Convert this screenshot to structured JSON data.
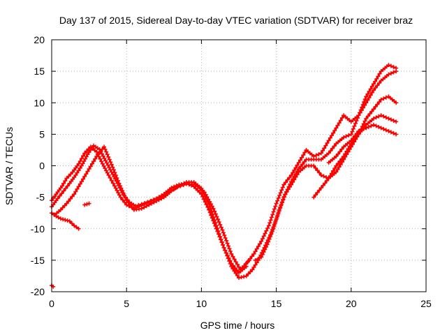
{
  "chart_data": {
    "type": "scatter",
    "title": "Day 137 of 2015, Sidereal Day-to-day VTEC variation (SDTVAR) for receiver braz",
    "xlabel": "GPS time / hours",
    "ylabel": "SDTVAR / TECUs",
    "xlim": [
      0,
      25
    ],
    "ylim": [
      -20,
      20
    ],
    "xticks": [
      0,
      5,
      10,
      15,
      20,
      25
    ],
    "yticks": [
      -20,
      -15,
      -10,
      -5,
      0,
      5,
      10,
      15,
      20
    ],
    "xtick_labels": [
      "0",
      "5",
      "10",
      "15",
      "20",
      "25"
    ],
    "ytick_labels": [
      "-20",
      "-15",
      "-10",
      "-5",
      "0",
      "5",
      "10",
      "15",
      "20"
    ],
    "grid": true,
    "marker": "plus",
    "color": "#ff0000",
    "series": [
      {
        "name": "arc-1",
        "x": [
          0.0,
          0.3,
          0.7,
          1.0,
          1.4,
          1.8,
          2.2,
          2.6,
          3.0,
          3.4,
          3.8,
          4.2,
          4.6,
          5.0,
          5.5,
          6.0,
          6.5,
          7.0,
          7.5,
          8.0,
          8.5,
          9.0,
          9.5,
          10.0,
          10.5,
          11.0,
          11.5,
          12.0,
          12.5,
          13.0
        ],
        "y": [
          -5.5,
          -4.5,
          -3.2,
          -2.0,
          -1.0,
          0.3,
          2.0,
          3.0,
          2.2,
          0.3,
          -1.5,
          -3.2,
          -5.0,
          -6.2,
          -6.8,
          -6.3,
          -5.8,
          -5.2,
          -4.5,
          -3.5,
          -3.0,
          -2.8,
          -3.3,
          -4.5,
          -7.0,
          -10.0,
          -13.0,
          -15.5,
          -17.0,
          -16.0
        ]
      },
      {
        "name": "arc-2",
        "x": [
          0.0,
          0.4,
          0.8,
          1.2,
          1.6,
          2.0,
          2.4,
          2.8,
          3.2,
          3.6,
          4.0,
          4.4,
          4.8,
          5.2,
          5.6,
          6.0,
          6.6,
          7.2,
          7.8,
          8.4,
          9.0,
          9.6,
          10.2,
          10.8,
          11.4,
          12.0,
          12.6,
          13.2
        ],
        "y": [
          -6.5,
          -5.2,
          -4.0,
          -2.8,
          -1.5,
          0.0,
          1.8,
          3.2,
          2.6,
          0.8,
          -1.0,
          -2.8,
          -4.6,
          -5.8,
          -6.4,
          -6.1,
          -5.6,
          -5.1,
          -4.2,
          -3.4,
          -2.9,
          -3.0,
          -4.2,
          -6.8,
          -10.2,
          -14.0,
          -16.5,
          -15.0
        ]
      },
      {
        "name": "arc-3",
        "x": [
          0.2,
          0.6,
          1.0,
          1.5,
          2.0,
          2.5,
          3.0,
          3.5,
          4.0,
          4.5,
          5.0,
          5.5,
          6.0,
          6.5,
          7.0,
          7.5,
          8.0,
          8.5,
          9.0,
          9.5,
          10.0,
          10.5,
          11.0,
          11.5,
          12.0,
          12.5,
          13.0,
          13.4
        ],
        "y": [
          -7.8,
          -7.0,
          -6.0,
          -4.5,
          -2.5,
          -0.5,
          1.5,
          3.0,
          0.2,
          -2.8,
          -5.5,
          -7.0,
          -6.8,
          -6.2,
          -5.6,
          -5.0,
          -4.0,
          -3.2,
          -2.6,
          -2.6,
          -3.6,
          -6.0,
          -9.5,
          -13.0,
          -16.0,
          -17.8,
          -17.5,
          -16.5
        ]
      },
      {
        "name": "arc-4",
        "x": [
          13.0,
          13.5,
          14.0,
          14.5,
          15.0,
          15.5,
          16.0,
          16.5,
          17.0,
          17.5,
          18.0,
          18.5,
          19.0,
          19.5,
          20.0,
          20.5,
          21.0,
          21.5,
          22.0,
          22.5,
          23.0
        ],
        "y": [
          -15.5,
          -14.0,
          -12.0,
          -9.5,
          -6.0,
          -3.0,
          -1.5,
          0.5,
          2.5,
          1.5,
          2.0,
          4.0,
          6.0,
          8.0,
          7.0,
          8.0,
          10.0,
          12.0,
          13.5,
          14.5,
          15.0
        ]
      },
      {
        "name": "arc-5",
        "x": [
          13.4,
          13.8,
          14.2,
          14.6,
          15.0,
          15.5,
          16.0,
          16.5,
          17.0,
          17.5,
          18.0,
          18.5,
          19.0,
          19.5,
          20.0,
          20.5,
          21.0,
          21.5,
          22.0,
          22.5,
          23.0
        ],
        "y": [
          -16.5,
          -15.0,
          -13.0,
          -11.0,
          -8.5,
          -5.0,
          -2.5,
          -0.5,
          1.0,
          1.0,
          1.0,
          2.0,
          3.5,
          4.5,
          5.0,
          8.0,
          11.0,
          13.0,
          15.0,
          16.0,
          15.5
        ]
      },
      {
        "name": "arc-6",
        "x": [
          13.6,
          14.0,
          14.4,
          14.8,
          15.2,
          15.6,
          16.0,
          16.5,
          17.0,
          17.5,
          18.0,
          18.5,
          19.0,
          19.5,
          20.0,
          20.5,
          21.0,
          21.5,
          22.0,
          22.5,
          23.0
        ],
        "y": [
          -15.0,
          -14.5,
          -12.5,
          -10.0,
          -7.0,
          -4.5,
          -3.0,
          -1.0,
          0.0,
          0.0,
          -1.5,
          -2.0,
          -1.0,
          1.0,
          3.0,
          5.0,
          7.5,
          9.0,
          10.5,
          11.0,
          10.0
        ]
      },
      {
        "name": "arc-7",
        "x": [
          17.5,
          18.0,
          18.5,
          19.0,
          19.5,
          20.0,
          20.5,
          21.0,
          21.5,
          22.0,
          22.5,
          23.0
        ],
        "y": [
          -5.0,
          -3.5,
          -2.0,
          0.0,
          1.5,
          3.5,
          5.0,
          6.5,
          7.5,
          8.0,
          7.5,
          7.0
        ]
      },
      {
        "name": "arc-8",
        "x": [
          18.5,
          19.0,
          19.5,
          20.0,
          20.5,
          21.0,
          21.5,
          22.0,
          22.5,
          23.0
        ],
        "y": [
          0.5,
          1.5,
          3.0,
          4.0,
          5.5,
          6.0,
          6.5,
          6.0,
          5.5,
          5.0
        ]
      },
      {
        "name": "arc-9",
        "x": [
          0.0,
          0.3,
          0.6,
          0.9,
          1.2,
          1.5,
          1.8
        ],
        "y": [
          -7.5,
          -8.0,
          -8.4,
          -8.6,
          -8.8,
          -9.5,
          -10.0
        ]
      },
      {
        "name": "arc-10",
        "x": [
          0.0,
          0.1
        ],
        "y": [
          -19.0,
          -19.2
        ]
      },
      {
        "name": "arc-11",
        "x": [
          2.2,
          2.5
        ],
        "y": [
          -6.2,
          -6.0
        ]
      }
    ]
  }
}
